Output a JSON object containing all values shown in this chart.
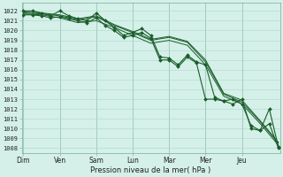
{
  "xlabel": "Pression niveau de la mer( hPa )",
  "background_color": "#d4f0e8",
  "grid_color": "#b0d8cc",
  "line_color": "#1a5c2a",
  "ylim_bottom": 1007.5,
  "ylim_top": 1022.8,
  "yticks": [
    1008,
    1009,
    1010,
    1011,
    1012,
    1013,
    1014,
    1015,
    1016,
    1017,
    1018,
    1019,
    1020,
    1021,
    1022
  ],
  "day_labels": [
    "Dim",
    "Ven",
    "Sam",
    "Lun",
    "Mar",
    "Mer",
    "Jeu"
  ],
  "day_positions": [
    0,
    24,
    48,
    72,
    96,
    120,
    144
  ],
  "xlim": [
    -1,
    169
  ],
  "smooth1_x": [
    0,
    12,
    24,
    36,
    48,
    60,
    72,
    84,
    96,
    108,
    120,
    132,
    144,
    156,
    168
  ],
  "smooth1_y": [
    1021.7,
    1021.6,
    1021.3,
    1020.8,
    1021.0,
    1020.3,
    1019.5,
    1018.7,
    1019.0,
    1018.5,
    1016.5,
    1013.3,
    1012.5,
    1010.5,
    1008.3
  ],
  "smooth2_x": [
    0,
    12,
    24,
    36,
    48,
    60,
    72,
    84,
    96,
    108,
    120,
    132,
    144,
    156,
    168
  ],
  "smooth2_y": [
    1021.8,
    1021.7,
    1021.5,
    1021.1,
    1021.4,
    1020.5,
    1019.8,
    1019.0,
    1019.3,
    1018.8,
    1016.8,
    1013.5,
    1012.7,
    1010.7,
    1008.5
  ],
  "smooth3_x": [
    0,
    12,
    24,
    36,
    48,
    60,
    72,
    84,
    96,
    108,
    120,
    132,
    144,
    156,
    168
  ],
  "smooth3_y": [
    1021.9,
    1021.8,
    1021.6,
    1021.2,
    1021.5,
    1020.6,
    1019.9,
    1019.1,
    1019.4,
    1018.9,
    1017.0,
    1013.6,
    1012.9,
    1010.8,
    1008.6
  ],
  "marked1_x": [
    0,
    6,
    12,
    18,
    24,
    30,
    36,
    42,
    48,
    54,
    60,
    66,
    72,
    78,
    84,
    90,
    96,
    102,
    108,
    114,
    120,
    126,
    132,
    138,
    144,
    150,
    156,
    162,
    168
  ],
  "marked1_y": [
    1022.0,
    1022.0,
    1021.8,
    1021.5,
    1022.0,
    1021.5,
    1021.2,
    1021.0,
    1021.8,
    1021.0,
    1020.3,
    1019.5,
    1019.8,
    1020.2,
    1019.5,
    1017.3,
    1017.2,
    1016.5,
    1017.5,
    1016.8,
    1016.5,
    1013.2,
    1012.8,
    1012.5,
    1013.0,
    1010.0,
    1009.8,
    1012.0,
    1008.1
  ],
  "marked2_x": [
    0,
    6,
    12,
    18,
    24,
    30,
    36,
    42,
    48,
    54,
    60,
    66,
    72,
    78,
    84,
    90,
    96,
    102,
    108,
    114,
    120,
    126,
    132,
    138,
    144,
    150,
    156,
    162,
    168
  ],
  "marked2_y": [
    1021.6,
    1021.6,
    1021.5,
    1021.3,
    1021.4,
    1021.2,
    1021.0,
    1020.8,
    1021.3,
    1020.5,
    1020.0,
    1019.3,
    1019.5,
    1019.8,
    1019.2,
    1017.0,
    1017.0,
    1016.3,
    1017.3,
    1016.7,
    1013.0,
    1013.0,
    1012.8,
    1013.0,
    1012.5,
    1010.3,
    1009.8,
    1010.5,
    1008.0
  ]
}
